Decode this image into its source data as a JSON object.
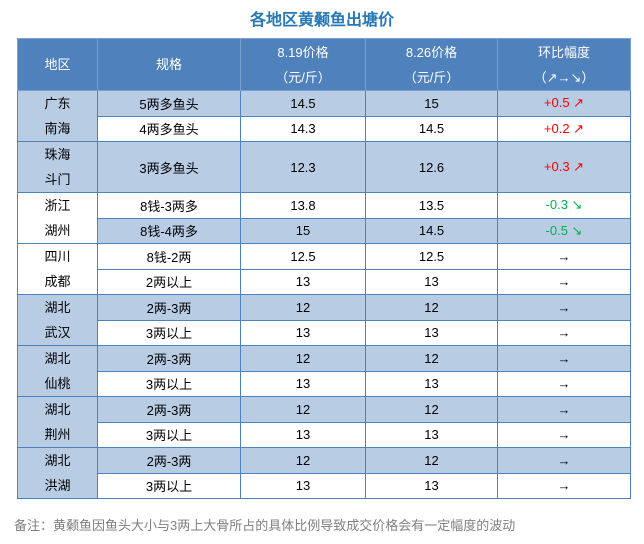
{
  "title": "各地区黄颡鱼出塘价",
  "note": "备注：黄颡鱼因鱼头大小与3两上大骨所占的具体比例导致成交价格会有一定幅度的波动",
  "colors": {
    "header_bg": "#4F81BD",
    "header_text": "#FFFFFF",
    "shaded_row_bg": "#B8CCE4",
    "border": "#4F81BD",
    "title_text": "#2878B5",
    "note_text": "#808080",
    "trend_up": "#FF0000",
    "trend_down": "#00B050",
    "trend_flat": "#000000"
  },
  "table": {
    "headers": {
      "region": "地区",
      "spec": "规格",
      "price_819": [
        "8.19价格",
        "（元/斤）"
      ],
      "price_826": [
        "8.26价格",
        "（元/斤）"
      ],
      "change": [
        "环比幅度",
        "（↗→↘）"
      ]
    },
    "groups": [
      {
        "region": [
          "广东",
          "南海"
        ],
        "region_shaded": true,
        "rows": [
          {
            "spec": "5两多鱼头",
            "price_819": "14.5",
            "price_826": "15",
            "change": "+0.5 ↗",
            "trend": "up",
            "shaded": true,
            "tall": false
          },
          {
            "spec": "4两多鱼头",
            "price_819": "14.3",
            "price_826": "14.5",
            "change": "+0.2 ↗",
            "trend": "up",
            "shaded": false,
            "tall": false
          }
        ]
      },
      {
        "region": [
          "珠海",
          "斗门"
        ],
        "region_shaded": true,
        "rows": [
          {
            "spec": "3两多鱼头",
            "price_819": "12.3",
            "price_826": "12.6",
            "change": "+0.3 ↗",
            "trend": "up",
            "shaded": true,
            "tall": true
          }
        ]
      },
      {
        "region": [
          "浙江",
          "湖州"
        ],
        "region_shaded": false,
        "rows": [
          {
            "spec": "8钱-3两多",
            "price_819": "13.8",
            "price_826": "13.5",
            "change": "-0.3 ↘",
            "trend": "down",
            "shaded": false,
            "tall": false
          },
          {
            "spec": "8钱-4两多",
            "price_819": "15",
            "price_826": "14.5",
            "change": "-0.5 ↘",
            "trend": "down",
            "shaded": true,
            "tall": false
          }
        ]
      },
      {
        "region": [
          "四川",
          "成都"
        ],
        "region_shaded": false,
        "rows": [
          {
            "spec": "8钱-2两",
            "price_819": "12.5",
            "price_826": "12.5",
            "change": "→",
            "trend": "flat",
            "shaded": false,
            "tall": false
          },
          {
            "spec": "2两以上",
            "price_819": "13",
            "price_826": "13",
            "change": "→",
            "trend": "flat",
            "shaded": false,
            "tall": false
          }
        ]
      },
      {
        "region": [
          "湖北",
          "武汉"
        ],
        "region_shaded": true,
        "rows": [
          {
            "spec": "2两-3两",
            "price_819": "12",
            "price_826": "12",
            "change": "→",
            "trend": "flat",
            "shaded": true,
            "tall": false
          },
          {
            "spec": "3两以上",
            "price_819": "13",
            "price_826": "13",
            "change": "→",
            "trend": "flat",
            "shaded": false,
            "tall": false
          }
        ]
      },
      {
        "region": [
          "湖北",
          "仙桃"
        ],
        "region_shaded": true,
        "rows": [
          {
            "spec": "2两-3两",
            "price_819": "12",
            "price_826": "12",
            "change": "→",
            "trend": "flat",
            "shaded": true,
            "tall": false
          },
          {
            "spec": "3两以上",
            "price_819": "13",
            "price_826": "13",
            "change": "→",
            "trend": "flat",
            "shaded": false,
            "tall": false
          }
        ]
      },
      {
        "region": [
          "湖北",
          "荆州"
        ],
        "region_shaded": true,
        "rows": [
          {
            "spec": "2两-3两",
            "price_819": "12",
            "price_826": "12",
            "change": "→",
            "trend": "flat",
            "shaded": true,
            "tall": false
          },
          {
            "spec": "3两以上",
            "price_819": "13",
            "price_826": "13",
            "change": "→",
            "trend": "flat",
            "shaded": false,
            "tall": false
          }
        ]
      },
      {
        "region": [
          "湖北",
          "洪湖"
        ],
        "region_shaded": true,
        "rows": [
          {
            "spec": "2两-3两",
            "price_819": "12",
            "price_826": "12",
            "change": "→",
            "trend": "flat",
            "shaded": true,
            "tall": false
          },
          {
            "spec": "3两以上",
            "price_819": "13",
            "price_826": "13",
            "change": "→",
            "trend": "flat",
            "shaded": false,
            "tall": false
          }
        ]
      }
    ]
  }
}
